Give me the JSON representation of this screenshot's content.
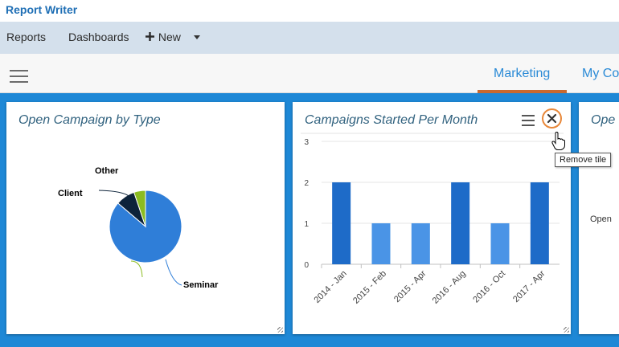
{
  "app": {
    "title": "Report Writer"
  },
  "menu": {
    "reports": "Reports",
    "dashboards": "Dashboards",
    "new": "New"
  },
  "tabs": [
    "Marketing",
    "My Co"
  ],
  "tiles": {
    "pie": {
      "title": "Open Campaign by Type",
      "labels": [
        "Other",
        "Client",
        "Seminar"
      ]
    },
    "bar": {
      "title": "Campaigns Started Per Month",
      "remove_tooltip": "Remove tile"
    },
    "third": {
      "title": "Ope",
      "axis_label": "Open"
    }
  },
  "colors": {
    "accent": "#2a8ad6",
    "tab_underline": "#c9692f",
    "background": "#1e88d6",
    "close_ring": "#e8883a"
  },
  "chart_data": [
    {
      "type": "pie",
      "title": "Open Campaign by Type",
      "slices": [
        {
          "label": "Seminar",
          "value": 10,
          "color": "#2f7ed8"
        },
        {
          "label": "Client",
          "value": 1,
          "color": "#0d233a"
        },
        {
          "label": "Other",
          "value": 0.6,
          "color": "#8bbc21"
        }
      ]
    },
    {
      "type": "bar",
      "title": "Campaigns Started Per Month",
      "categories": [
        "2014 - Jan",
        "2015 - Feb",
        "2015 - Apr",
        "2016 - Aug",
        "2016 - Oct",
        "2017 - Apr"
      ],
      "values": [
        2,
        1,
        1,
        2,
        1,
        2
      ],
      "yticks": [
        "0",
        "1",
        "2",
        "3"
      ],
      "ylim": [
        0,
        3
      ],
      "colors": {
        "high": "#1e6bc8",
        "low": "#4a94e6"
      }
    }
  ]
}
